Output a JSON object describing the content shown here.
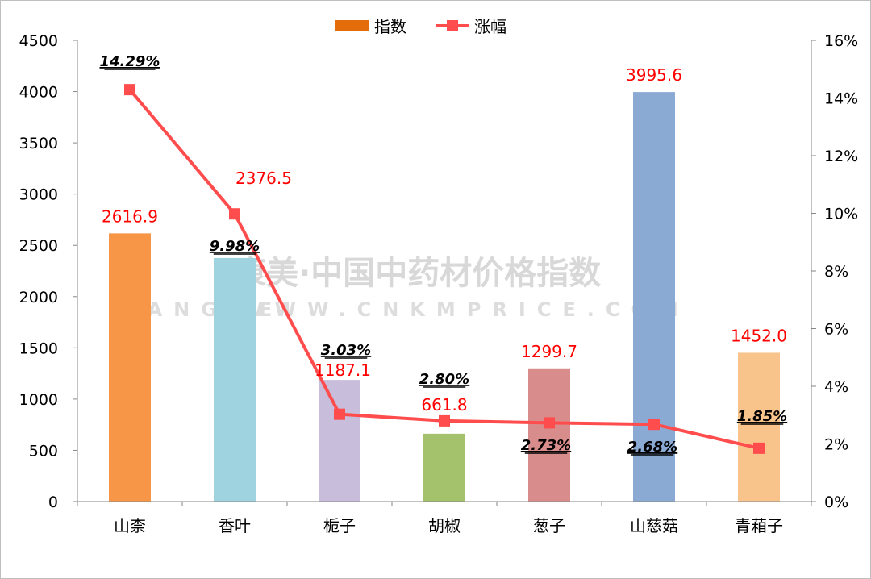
{
  "watermark": {
    "title": "康美·中国中药材价格指数",
    "brand": "KANGMEI",
    "url": "WWW.CNKMPRICE.COM"
  },
  "chart_data": {
    "type": "bar",
    "categories": [
      "山柰",
      "香叶",
      "栀子",
      "胡椒",
      "葱子",
      "山慈菇",
      "青葙子"
    ],
    "series": [
      {
        "name": "指数",
        "type": "bar",
        "axis": "left",
        "values": [
          2616.9,
          2376.5,
          1187.1,
          661.8,
          1299.7,
          3995.6,
          1452.0
        ],
        "labels": [
          "2616.9",
          "2376.5",
          "1187.1",
          "661.8",
          "1299.7",
          "3995.6",
          "1452.0"
        ],
        "colors": [
          "#f79646",
          "#9fd3e0",
          "#c8bedb",
          "#a3c26b",
          "#d98c8c",
          "#8aaad4",
          "#f9c38c"
        ]
      },
      {
        "name": "涨幅",
        "type": "line",
        "axis": "right",
        "values": [
          14.29,
          9.98,
          3.03,
          2.8,
          2.73,
          2.68,
          1.85
        ],
        "labels": [
          "14.29%",
          "9.98%",
          "3.03%",
          "2.80%",
          "2.73%",
          "2.68%",
          "1.85%"
        ],
        "color": "#ff4d4d"
      }
    ],
    "y_left": {
      "min": 0,
      "max": 4500,
      "step": 500,
      "ticks": [
        "0",
        "500",
        "1000",
        "1500",
        "2000",
        "2500",
        "3000",
        "3500",
        "4000",
        "4500"
      ]
    },
    "y_right": {
      "min": 0,
      "max": 16,
      "step": 2,
      "ticks": [
        "0%",
        "2%",
        "4%",
        "6%",
        "8%",
        "10%",
        "12%",
        "14%",
        "16%"
      ]
    },
    "legend": {
      "position": "top-center",
      "items": [
        "指数",
        "涨幅"
      ],
      "bar_color": "#e46c0a",
      "line_color": "#ff4d4d"
    },
    "grid": false
  }
}
